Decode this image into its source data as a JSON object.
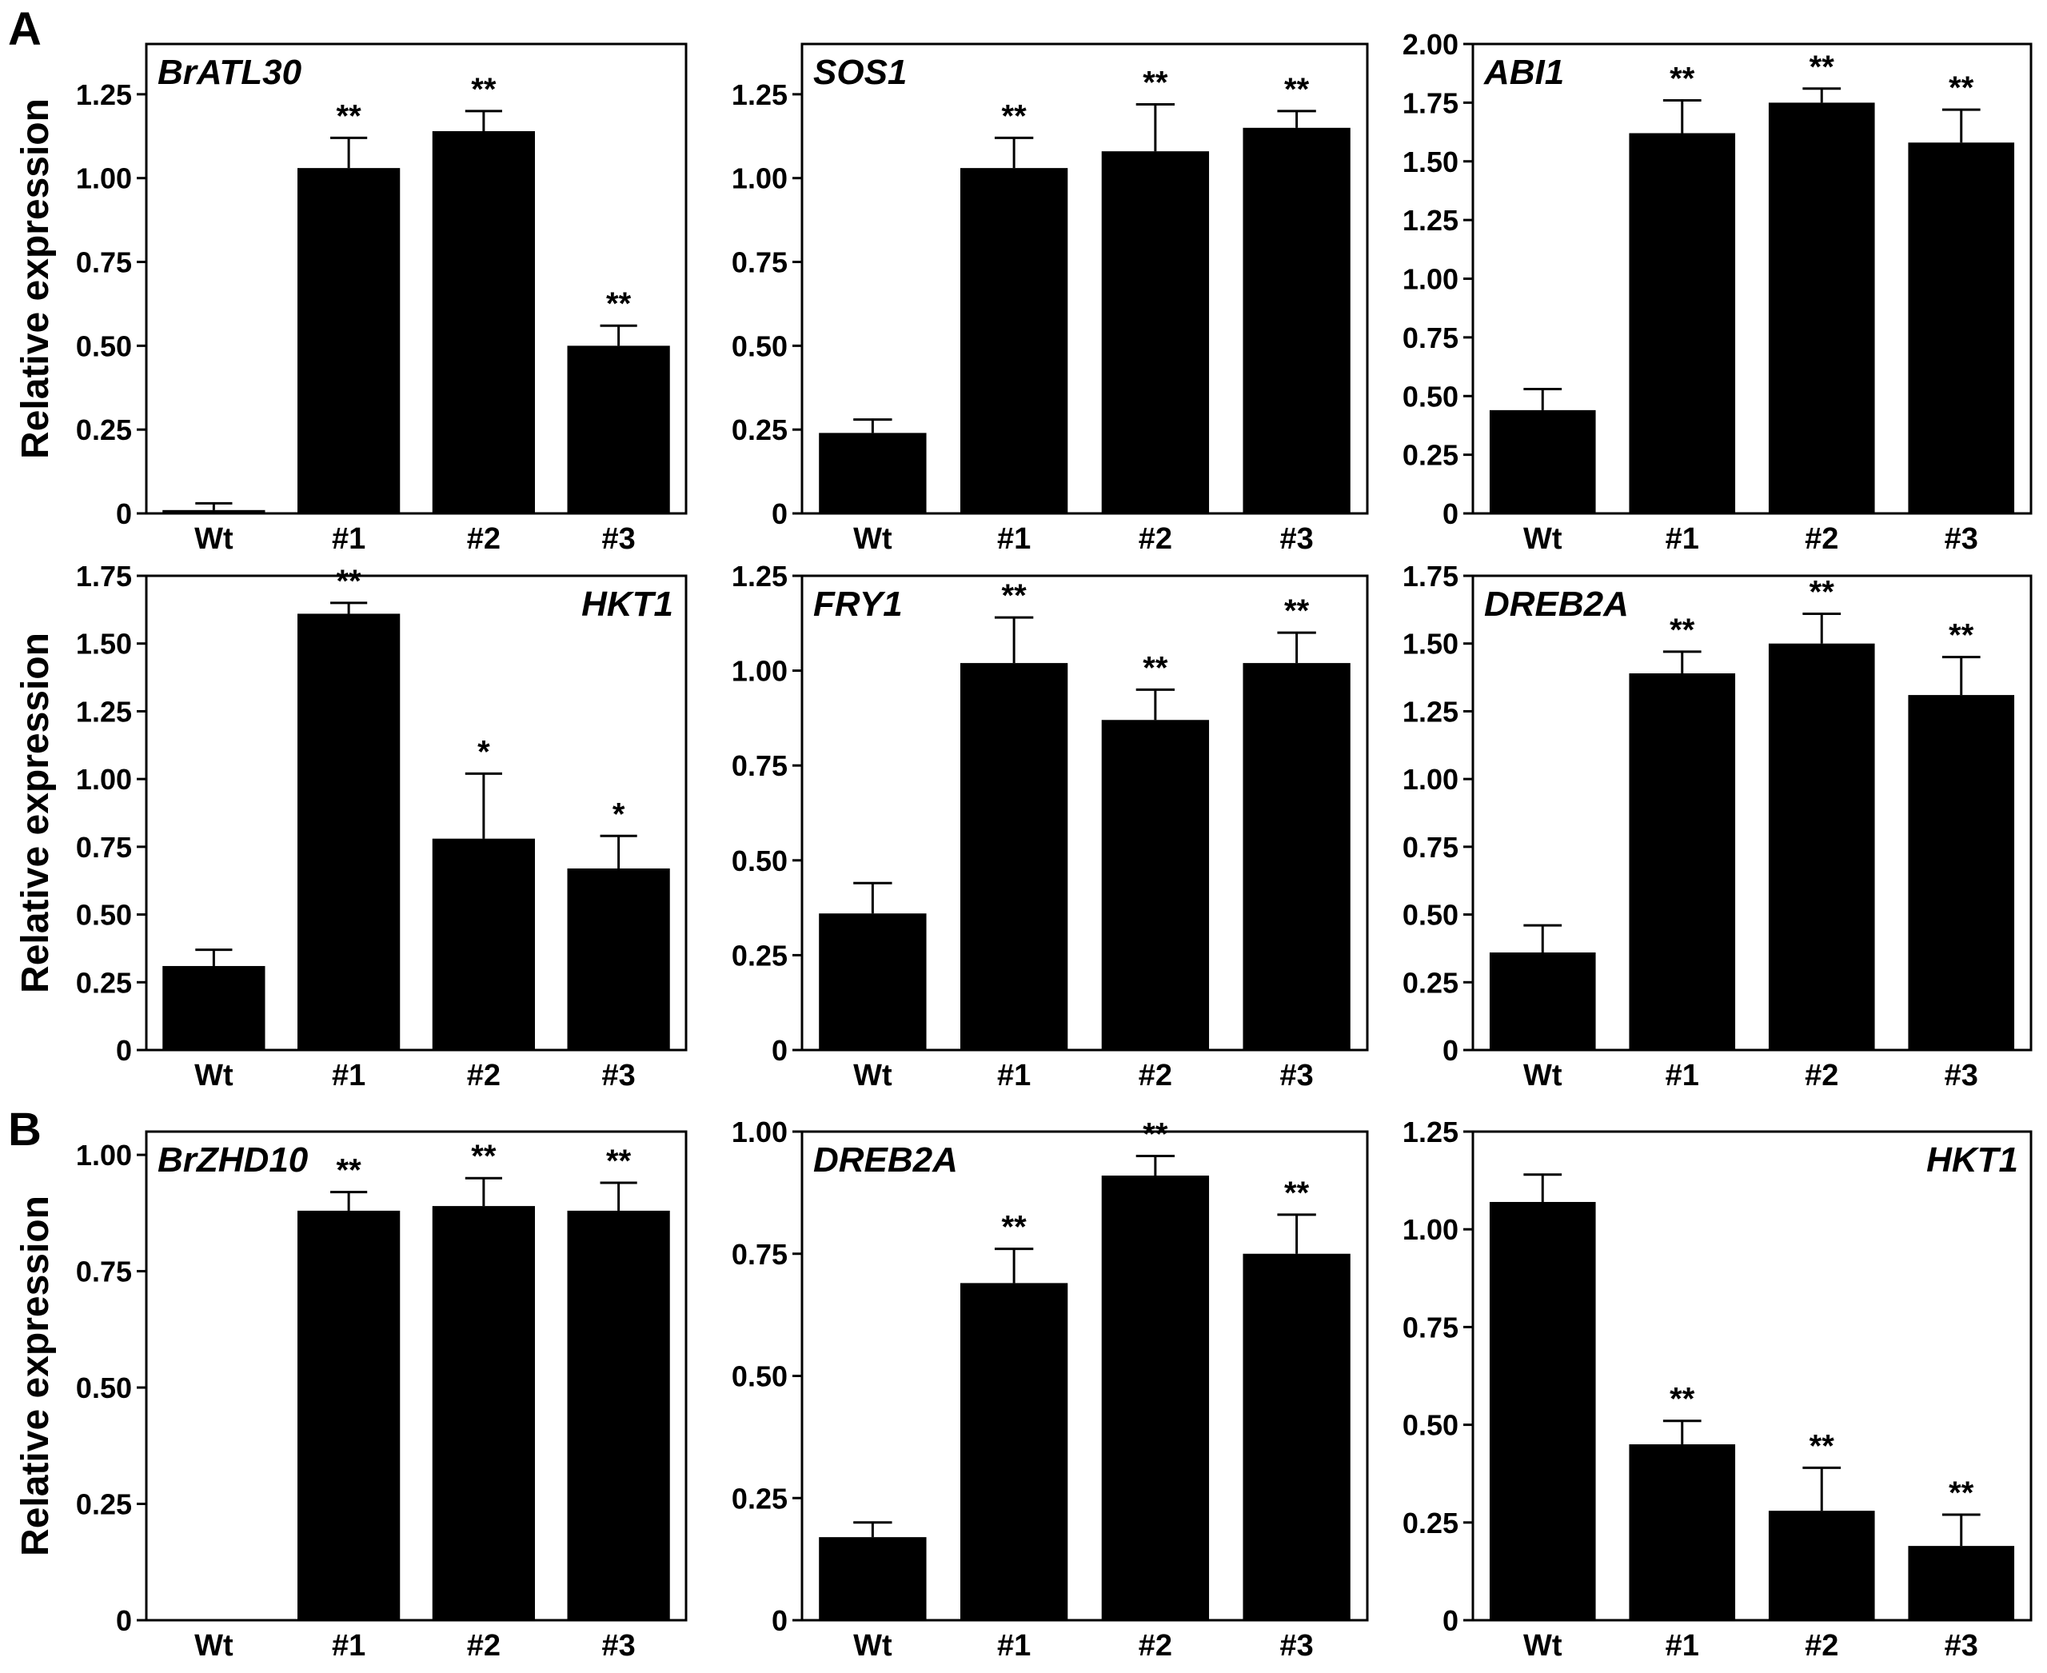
{
  "panel_labels": [
    "A",
    "B"
  ],
  "y_axis_label": "Relative expression",
  "chart_data": [
    {
      "type": "bar",
      "panel": "A",
      "title": "BrATL30",
      "title_position": "top-left",
      "categories": [
        "Wt",
        "#1",
        "#2",
        "#3"
      ],
      "values": [
        0.01,
        1.03,
        1.14,
        0.5
      ],
      "errors": [
        0.02,
        0.09,
        0.06,
        0.06
      ],
      "significance": [
        "",
        "**",
        "**",
        "**"
      ],
      "ylim": [
        0,
        1.4
      ],
      "yticks": [
        0,
        0.25,
        0.5,
        0.75,
        1.0,
        1.25
      ],
      "ytick_labels": [
        "0",
        "0.25",
        "0.50",
        "0.75",
        "1.00",
        "1.25"
      ],
      "ylabel": "Relative expression"
    },
    {
      "type": "bar",
      "panel": "A",
      "title": "SOS1",
      "title_position": "top-left",
      "categories": [
        "Wt",
        "#1",
        "#2",
        "#3"
      ],
      "values": [
        0.24,
        1.03,
        1.08,
        1.15
      ],
      "errors": [
        0.04,
        0.09,
        0.14,
        0.05
      ],
      "significance": [
        "",
        "**",
        "**",
        "**"
      ],
      "ylim": [
        0,
        1.4
      ],
      "yticks": [
        0,
        0.25,
        0.5,
        0.75,
        1.0,
        1.25
      ],
      "ytick_labels": [
        "0",
        "0.25",
        "0.50",
        "0.75",
        "1.00",
        "1.25"
      ]
    },
    {
      "type": "bar",
      "panel": "A",
      "title": "ABI1",
      "title_position": "top-left",
      "categories": [
        "Wt",
        "#1",
        "#2",
        "#3"
      ],
      "values": [
        0.44,
        1.62,
        1.75,
        1.58
      ],
      "errors": [
        0.09,
        0.14,
        0.06,
        0.14
      ],
      "significance": [
        "",
        "**",
        "**",
        "**"
      ],
      "ylim": [
        0,
        2.0
      ],
      "yticks": [
        0,
        0.25,
        0.5,
        0.75,
        1.0,
        1.25,
        1.5,
        1.75,
        2.0
      ],
      "ytick_labels": [
        "0",
        "0.25",
        "0.50",
        "0.75",
        "1.00",
        "1.25",
        "1.50",
        "1.75",
        "2.00"
      ]
    },
    {
      "type": "bar",
      "panel": "A",
      "title": "HKT1",
      "title_position": "top-right",
      "categories": [
        "Wt",
        "#1",
        "#2",
        "#3"
      ],
      "values": [
        0.31,
        1.61,
        0.78,
        0.67
      ],
      "errors": [
        0.06,
        0.04,
        0.24,
        0.12
      ],
      "significance": [
        "",
        "**",
        "*",
        "*"
      ],
      "ylim": [
        0,
        1.75
      ],
      "yticks": [
        0,
        0.25,
        0.5,
        0.75,
        1.0,
        1.25,
        1.5,
        1.75
      ],
      "ytick_labels": [
        "0",
        "0.25",
        "0.50",
        "0.75",
        "1.00",
        "1.25",
        "1.50",
        "1.75"
      ],
      "ylabel": "Relative expression"
    },
    {
      "type": "bar",
      "panel": "A",
      "title": "FRY1",
      "title_position": "top-left",
      "categories": [
        "Wt",
        "#1",
        "#2",
        "#3"
      ],
      "values": [
        0.36,
        1.02,
        0.87,
        1.02
      ],
      "errors": [
        0.08,
        0.12,
        0.08,
        0.08
      ],
      "significance": [
        "",
        "**",
        "**",
        "**"
      ],
      "ylim": [
        0,
        1.25
      ],
      "yticks": [
        0,
        0.25,
        0.5,
        0.75,
        1.0,
        1.25
      ],
      "ytick_labels": [
        "0",
        "0.25",
        "0.50",
        "0.75",
        "1.00",
        "1.25"
      ]
    },
    {
      "type": "bar",
      "panel": "A",
      "title": "DREB2A",
      "title_position": "top-left",
      "categories": [
        "Wt",
        "#1",
        "#2",
        "#3"
      ],
      "values": [
        0.36,
        1.39,
        1.5,
        1.31
      ],
      "errors": [
        0.1,
        0.08,
        0.11,
        0.14
      ],
      "significance": [
        "",
        "**",
        "**",
        "**"
      ],
      "ylim": [
        0,
        1.75
      ],
      "yticks": [
        0,
        0.25,
        0.5,
        0.75,
        1.0,
        1.25,
        1.5,
        1.75
      ],
      "ytick_labels": [
        "0",
        "0.25",
        "0.50",
        "0.75",
        "1.00",
        "1.25",
        "1.50",
        "1.75"
      ]
    },
    {
      "type": "bar",
      "panel": "B",
      "title": "BrZHD10",
      "title_position": "top-left",
      "categories": [
        "Wt",
        "#1",
        "#2",
        "#3"
      ],
      "values": [
        0.0,
        0.88,
        0.89,
        0.88
      ],
      "errors": [
        0.0,
        0.04,
        0.06,
        0.06
      ],
      "significance": [
        "",
        "**",
        "**",
        "**"
      ],
      "ylim": [
        0,
        1.05
      ],
      "yticks": [
        0,
        0.25,
        0.5,
        0.75,
        1.0
      ],
      "ytick_labels": [
        "0",
        "0.25",
        "0.50",
        "0.75",
        "1.00"
      ],
      "ylabel": "Relative expression"
    },
    {
      "type": "bar",
      "panel": "B",
      "title": "DREB2A",
      "title_position": "top-left",
      "categories": [
        "Wt",
        "#1",
        "#2",
        "#3"
      ],
      "values": [
        0.17,
        0.69,
        0.91,
        0.75
      ],
      "errors": [
        0.03,
        0.07,
        0.04,
        0.08
      ],
      "significance": [
        "",
        "**",
        "**",
        "**"
      ],
      "ylim": [
        0,
        1.0
      ],
      "yticks": [
        0,
        0.25,
        0.5,
        0.75,
        1.0
      ],
      "ytick_labels": [
        "0",
        "0.25",
        "0.50",
        "0.75",
        "1.00"
      ]
    },
    {
      "type": "bar",
      "panel": "B",
      "title": "HKT1",
      "title_position": "top-right",
      "categories": [
        "Wt",
        "#1",
        "#2",
        "#3"
      ],
      "values": [
        1.07,
        0.45,
        0.28,
        0.19
      ],
      "errors": [
        0.07,
        0.06,
        0.11,
        0.08
      ],
      "significance": [
        "",
        "**",
        "**",
        "**"
      ],
      "ylim": [
        0,
        1.25
      ],
      "yticks": [
        0,
        0.25,
        0.5,
        0.75,
        1.0,
        1.25
      ],
      "ytick_labels": [
        "0",
        "0.25",
        "0.50",
        "0.75",
        "1.00",
        "1.25"
      ]
    }
  ]
}
